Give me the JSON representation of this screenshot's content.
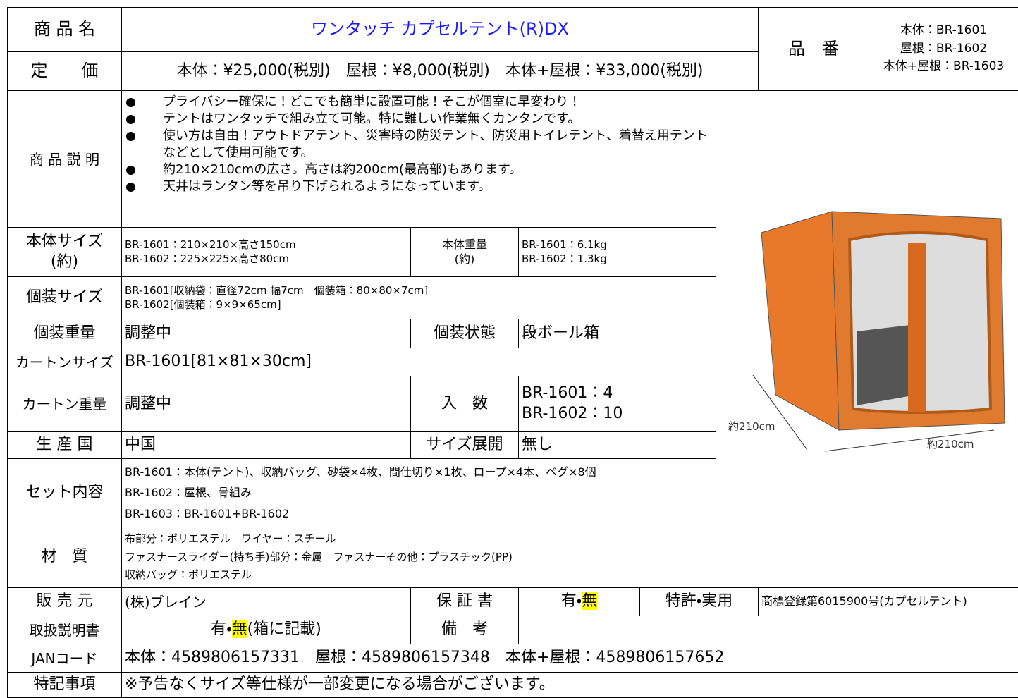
{
  "header": {
    "name_label": "商 品 名",
    "name": "ワンタッチ カプセルテント(R)DX",
    "price_label": "定　　価",
    "price": "本体：¥25,000(税別)　屋根：¥8,000(税別)　本体+屋根：¥33,000(税別)",
    "code_label": "品　番",
    "codes": [
      "本体：BR-1601",
      "屋根：BR-1602",
      "本体+屋根：BR-1603"
    ]
  },
  "description": {
    "label": "商 品 説 明",
    "items": [
      "プライバシー確保に！どこでも簡単に設置可能！そこが個室に早変わり！",
      "テントはワンタッチで組み立て可能。特に難しい作業無くカンタンです。",
      "使い方は自由！アウトドアテント、災害時の防災テント、防災用トイレテント、着替え用テントなどとして使用可能です。",
      "約210×210cmの広さ。高さは約200cm(最高部)もあります。",
      "天井はランタン等を吊り下げられるようになっています。"
    ]
  },
  "specs": {
    "body_size": {
      "label": [
        "本体サイズ",
        "(約)"
      ],
      "value": [
        "BR-1601：210×210×高さ150cm",
        "BR-1602：225×225×高さ80cm"
      ]
    },
    "body_weight": {
      "label": [
        "本体重量",
        "(約)"
      ],
      "value": [
        "BR-1601：6.1kg",
        "BR-1602：1.3kg"
      ]
    },
    "package_size": {
      "label": "個装サイズ",
      "value": [
        "BR-1601[収納袋：直径72cm 幅7cm　個装箱：80×80×7cm]",
        "BR-1602[個装箱：9×9×65cm]"
      ]
    },
    "package_weight": {
      "label": "個装重量",
      "value": "調整中"
    },
    "package_state": {
      "label": "個装状態",
      "value": "段ボール箱"
    },
    "carton_size": {
      "label": "カートンサイズ",
      "value": "BR-1601[81×81×30cm]"
    },
    "carton_weight": {
      "label": "カートン重量",
      "value": "調整中"
    },
    "quantity": {
      "label": "入　数",
      "value": [
        "BR-1601：4",
        "BR-1602：10"
      ]
    },
    "origin": {
      "label": "生 産 国",
      "value": "中国"
    },
    "size_variation": {
      "label": "サイズ展開",
      "value": "無し"
    },
    "set_contents": {
      "label": "セット内容",
      "value": [
        "BR-1601：本体(テント)、収納バッグ、砂袋×4枚、間仕切り×1枚、ロープ×4本、ペグ×8個",
        "BR-1602：屋根、骨組み",
        "BR-1603：BR-1601+BR-1602"
      ]
    },
    "material": {
      "label": "材　質",
      "value": [
        "布部分：ポリエステル　ワイヤー：スチール",
        "ファスナースライダー(持ち手)部分：金属　ファスナーその他：プラスチック(PP)",
        "収納バッグ：ポリエステル"
      ]
    },
    "seller": {
      "label": "販 売 元",
      "value": "(株)ブレイン"
    },
    "warranty": {
      "label": "保 証 書",
      "value": {
        "yes": "有・",
        "no": "無"
      }
    },
    "patent": {
      "label": "特許・実用",
      "value": "商標登録第6015900号(カプセルテント)"
    },
    "manual": {
      "label": "取扱説明書",
      "value": {
        "yes": "有・",
        "no": "無",
        "note": "(箱に記載)"
      }
    },
    "remarks": {
      "label": "備　考"
    },
    "jan": {
      "label": "JANコード",
      "value": "本体：4589806157331　屋根：4589806157348　本体+屋根：4589806157652"
    },
    "notes": {
      "label": "特記事項",
      "value": "※予告なくサイズ等仕様が一部変更になる場合がございます。"
    }
  },
  "image": {
    "dims": [
      "約210cm",
      "約210cm"
    ]
  }
}
